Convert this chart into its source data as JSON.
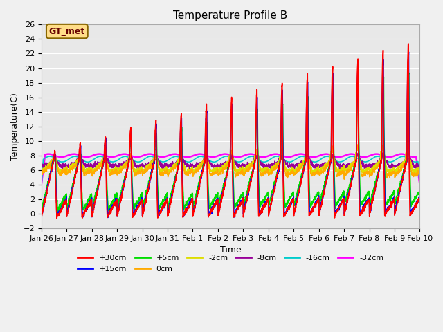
{
  "title": "Temperature Profile B",
  "xlabel": "Time",
  "ylabel": "Temperature(C)",
  "ylim": [
    -2,
    26
  ],
  "yticks": [
    -2,
    0,
    2,
    4,
    6,
    8,
    10,
    12,
    14,
    16,
    18,
    20,
    22,
    24,
    26
  ],
  "x_labels": [
    "Jan 26",
    "Jan 27",
    "Jan 28",
    "Jan 29",
    "Jan 30",
    "Jan 31",
    "Feb 1",
    "Feb 2",
    "Feb 3",
    "Feb 4",
    "Feb 5",
    "Feb 6",
    "Feb 7",
    "Feb 8",
    "Feb 9",
    "Feb 10"
  ],
  "series_colors": {
    "+30cm": "#ff0000",
    "+15cm": "#0000ff",
    "+5cm": "#00dd00",
    "0cm": "#ffaa00",
    "-2cm": "#dddd00",
    "-8cm": "#990099",
    "-16cm": "#00cccc",
    "-32cm": "#ff00ff"
  },
  "bg_color": "#e8e8e8",
  "annotation_text": "GT_met",
  "annotation_bg": "#ffdd88",
  "annotation_border": "#886600"
}
